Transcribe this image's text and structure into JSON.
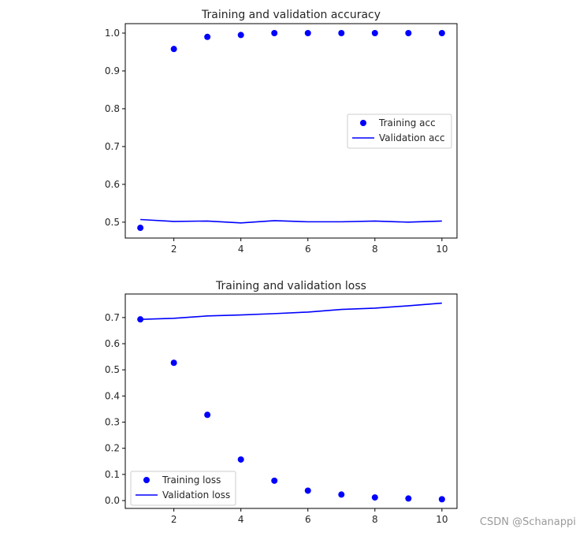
{
  "chart_data": [
    {
      "type": "line",
      "title": "Training and validation accuracy",
      "xlabel": "",
      "ylabel": "",
      "x": [
        1,
        2,
        3,
        4,
        5,
        6,
        7,
        8,
        9,
        10
      ],
      "xlim": [
        0.55,
        10.45
      ],
      "ylim": [
        0.458,
        1.025
      ],
      "xticks": [
        2,
        4,
        6,
        8,
        10
      ],
      "yticks": [
        0.5,
        0.6,
        0.7,
        0.8,
        0.9,
        1.0
      ],
      "ytick_labels": [
        "0.5",
        "0.6",
        "0.7",
        "0.8",
        "0.9",
        "1.0"
      ],
      "grid": false,
      "legend_position": "center-right",
      "series": [
        {
          "name": "Training acc",
          "style": "markers",
          "color": "#0000ff",
          "values": [
            0.485,
            0.958,
            0.99,
            0.995,
            1.0,
            1.0,
            1.0,
            1.0,
            1.0,
            1.0
          ]
        },
        {
          "name": "Validation acc",
          "style": "line",
          "color": "#0000ff",
          "values": [
            0.507,
            0.502,
            0.503,
            0.498,
            0.504,
            0.501,
            0.501,
            0.503,
            0.5,
            0.503
          ]
        }
      ]
    },
    {
      "type": "line",
      "title": "Training and validation loss",
      "xlabel": "",
      "ylabel": "",
      "x": [
        1,
        2,
        3,
        4,
        5,
        6,
        7,
        8,
        9,
        10
      ],
      "xlim": [
        0.55,
        10.45
      ],
      "ylim": [
        -0.03,
        0.79
      ],
      "xticks": [
        2,
        4,
        6,
        8,
        10
      ],
      "yticks": [
        0.0,
        0.1,
        0.2,
        0.3,
        0.4,
        0.5,
        0.6,
        0.7
      ],
      "ytick_labels": [
        "0.0",
        "0.1",
        "0.2",
        "0.3",
        "0.4",
        "0.5",
        "0.6",
        "0.7"
      ],
      "grid": false,
      "legend_position": "lower-left",
      "series": [
        {
          "name": "Training loss",
          "style": "markers",
          "color": "#0000ff",
          "values": [
            0.693,
            0.527,
            0.328,
            0.157,
            0.076,
            0.038,
            0.023,
            0.012,
            0.008,
            0.005
          ]
        },
        {
          "name": "Validation loss",
          "style": "line",
          "color": "#0000ff",
          "values": [
            0.693,
            0.697,
            0.706,
            0.71,
            0.715,
            0.721,
            0.731,
            0.736,
            0.745,
            0.755
          ]
        }
      ]
    }
  ],
  "watermark": "CSDN @Schanappi"
}
